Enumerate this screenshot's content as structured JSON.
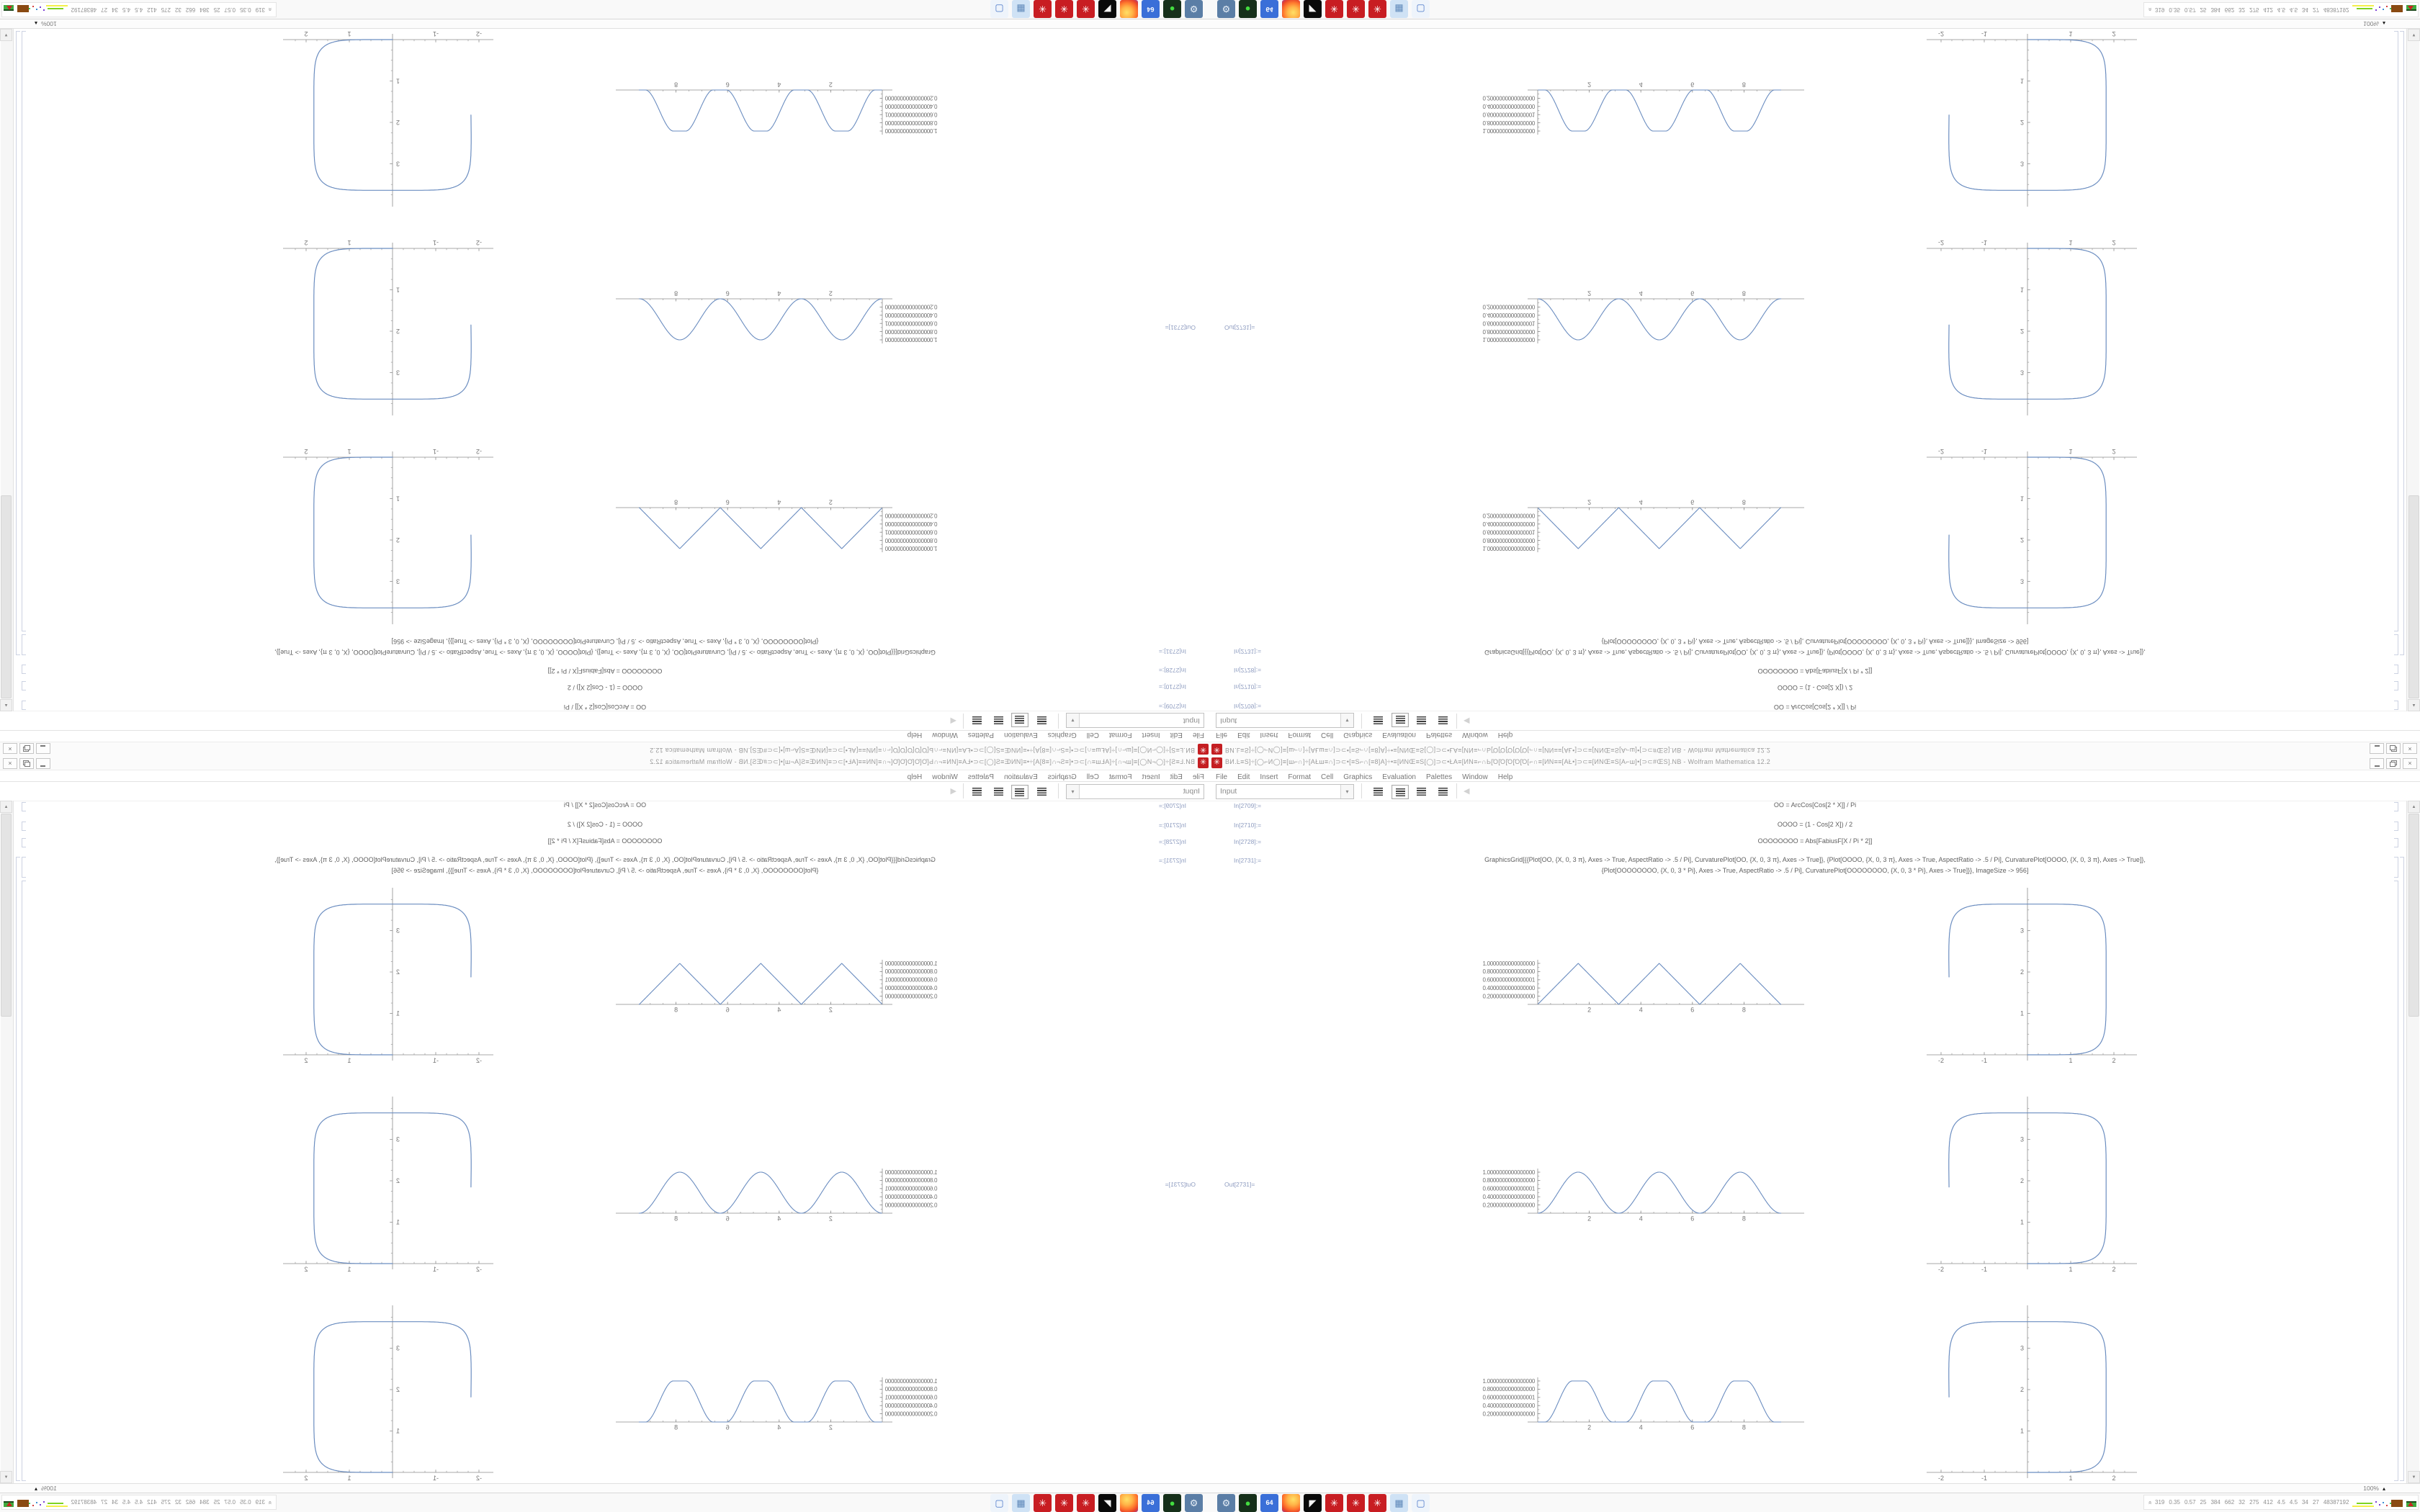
{
  "window": {
    "title": "BИ.Ŀ≡S]÷[◯⌐И◯]≡[ш⌐∩]÷[AŁш≡∩]⊃⊂•[≡S⌐∩[≡8]A]÷•≡[ИNŒ≡S[◯]⊃⊂•ŁA≡[ИN≡⌐∩Ь[Ό[Ό[Ό[Ό[Ό[⌐∩≡[ИN≡≡[AŁ•]⊃⊂≡[ИNŒ≡S[A⌐ш]•[⊃⊂#ŒS].NB - Wolfram Mathematica 12.2",
    "menu_items": [
      "File",
      "Edit",
      "Insert",
      "Format",
      "Cell",
      "Graphics",
      "Evaluation",
      "Palettes",
      "Window",
      "Help"
    ],
    "toolbar": {
      "cell_style": "Input"
    },
    "magnification": "100%"
  },
  "glyphs": {
    "spikey": "✳",
    "close": "×",
    "dropdown": "▾",
    "back": "◀",
    "scroll_up": "▲",
    "scroll_down": "▼",
    "mag_popup": "▴",
    "tray_chevron": "»"
  },
  "notebook": {
    "cells": [
      {
        "label": "In[2709]:=",
        "code": "OO = ArcCos[Cos[2 * X]] / Pi"
      },
      {
        "label": "In[2710]:=",
        "code": "OOOO = (1 - Cos[2 X]) / 2"
      },
      {
        "label": "In[2728]:=",
        "code": "OOOOOOOO = Abs[FabiusF[X / Pi * 2]]"
      },
      {
        "label": "In[2731]:=",
        "code": "GraphicsGrid[{{Plot[OO, {X, 0, 3 π}, Axes -> True, AspectRatio -> .5 / Pi], CurvaturePlot[OO, {X, 0, 3 π}, Axes -> True]}, {Plot[OOOO, {X, 0, 3 π}, Axes -> True, AspectRatio -> .5 / Pi], CurvaturePlot[OOOO, {X, 0, 3 π}, Axes -> True]},",
        "code2": "{Plot[OOOOOOOO, {X, 0, 3 * Pi}, Axes -> True, AspectRatio -> .5 / Pi], CurvaturePlot[OOOOOOOO, {X, 0, 3 * Pi}, Axes -> True]}}, ImageSize -> 956]"
      },
      {
        "label": "Out[2731]="
      }
    ]
  },
  "chart_data": [
    {
      "id": "plot-OO",
      "type": "line",
      "curve": "triangle",
      "expr": "ArcCos[Cos[2 X]] / Pi",
      "x_range": [
        0,
        9.45
      ],
      "x_ticks": [
        2,
        4,
        6,
        8
      ],
      "peaks_x": [
        1.571,
        4.712,
        7.854
      ],
      "y_ticks": [
        {
          "v": 1.0,
          "label": "1.0000000000000000"
        },
        {
          "v": 0.8,
          "label": "0.8000000000000000"
        },
        {
          "v": 0.6,
          "label": "0.6000000000000001"
        },
        {
          "v": 0.4,
          "label": "0.4000000000000000"
        },
        {
          "v": 0.2,
          "label": "0.2000000000000000"
        }
      ],
      "color": "#6b8dc0"
    },
    {
      "id": "plot-OOOO",
      "type": "line",
      "curve": "sin2",
      "expr": "(1 - Cos[2 X]) / 2",
      "x_range": [
        0,
        9.45
      ],
      "x_ticks": [
        2,
        4,
        6,
        8
      ],
      "y_ticks": [
        {
          "v": 1.0,
          "label": "1.0000000000000000"
        },
        {
          "v": 0.8,
          "label": "0.8000000000000000"
        },
        {
          "v": 0.6,
          "label": "0.6000000000000001"
        },
        {
          "v": 0.4,
          "label": "0.4000000000000000"
        },
        {
          "v": 0.2,
          "label": "0.2000000000000000"
        }
      ],
      "color": "#6b8dc0"
    },
    {
      "id": "plot-OOOOOOOO",
      "type": "line",
      "curve": "fabius",
      "expr": "Abs[FabiusF[X / Pi * 2]]",
      "x_range": [
        0,
        9.45
      ],
      "x_ticks": [
        2,
        4,
        6,
        8
      ],
      "y_ticks": [
        {
          "v": 1.0,
          "label": "1.0000000000000000"
        },
        {
          "v": 0.8,
          "label": "0.8000000000000000"
        },
        {
          "v": 0.6,
          "label": "0.6000000000000001"
        },
        {
          "v": 0.4,
          "label": "0.4000000000000000"
        },
        {
          "v": 0.2,
          "label": "0.2000000000000000"
        }
      ],
      "color": "#6b8dc0"
    },
    {
      "id": "curvature-plot-OO",
      "type": "line",
      "curve": "rounded-square",
      "expr": "CurvaturePlot[OO]",
      "x_range": [
        -2.2,
        2.4
      ],
      "y_range": [
        0,
        4.0
      ],
      "x_ticks": [
        -2,
        -1,
        1,
        2
      ],
      "y_ticks": [
        1,
        2,
        3
      ],
      "start": [
        0,
        0
      ],
      "end": [
        -1.815,
        1.88
      ],
      "top_y": 3.64,
      "half_width": 1.82,
      "exponent": 6,
      "color": "#6b8dc0"
    },
    {
      "id": "curvature-plot-OOOO",
      "type": "line",
      "curve": "rounded-square",
      "expr": "CurvaturePlot[OOOO]",
      "x_range": [
        -2.2,
        2.4
      ],
      "y_range": [
        0,
        4.0
      ],
      "x_ticks": [
        -2,
        -1,
        1,
        2
      ],
      "y_ticks": [
        1,
        2,
        3
      ],
      "start": [
        0,
        0
      ],
      "end": [
        -1.815,
        1.85
      ],
      "top_y": 3.64,
      "half_width": 1.82,
      "exponent": 6,
      "color": "#6b8dc0"
    },
    {
      "id": "curvature-plot-OOOOOOOO",
      "type": "line",
      "curve": "rounded-square",
      "expr": "CurvaturePlot[OOOOOOOO]",
      "x_range": [
        -2.2,
        2.4
      ],
      "y_range": [
        0,
        4.0
      ],
      "x_ticks": [
        -2,
        -1,
        1,
        2
      ],
      "y_ticks": [
        1,
        2,
        3
      ],
      "start": [
        0,
        0
      ],
      "end": [
        -1.815,
        1.82
      ],
      "top_y": 3.64,
      "half_width": 1.82,
      "exponent": 6,
      "color": "#6b8dc0"
    }
  ],
  "taskbar": {
    "icons": [
      {
        "name": "display-settings-icon",
        "bg": "#5b7ea6",
        "fg": "#e8f0f8",
        "glyph": "⚙"
      },
      {
        "name": "package-manager-icon",
        "bg": "#16301a",
        "fg": "#43dd3f",
        "glyph": "●"
      },
      {
        "name": "dosbox-64-icon",
        "bg": "#3a6fd8",
        "fg": "#ffffff",
        "glyph": "64",
        "cls": "dos"
      },
      {
        "name": "firefox-icon",
        "bg": "radial",
        "fg": "",
        "glyph": "",
        "cls": "ff"
      },
      {
        "name": "gimp-icon",
        "bg": "#0a0a0a",
        "fg": "#f5f5f5",
        "glyph": "◤"
      },
      {
        "name": "mathematica-icon",
        "bg": "#c81d22",
        "fg": "#ffffff",
        "glyph": "✳"
      },
      {
        "name": "mathematica-icon",
        "bg": "#c81d22",
        "fg": "#ffffff",
        "glyph": "✳"
      },
      {
        "name": "mathematica-icon",
        "bg": "#c81d22",
        "fg": "#ffffff",
        "glyph": "✳"
      },
      {
        "name": "calculator-icon",
        "bg": "#cfe2f5",
        "fg": "#5d87b8",
        "glyph": "▦"
      },
      {
        "name": "file-manager-icon",
        "bg": "#eef4fb",
        "fg": "#4a76c8",
        "glyph": "▢"
      }
    ],
    "tray": {
      "numbers": [
        "319",
        "0.35",
        "0.57",
        "25",
        "384",
        "662",
        "32",
        "275",
        "412",
        "4.5",
        "4.5",
        "34",
        "27",
        "48387192"
      ]
    }
  }
}
